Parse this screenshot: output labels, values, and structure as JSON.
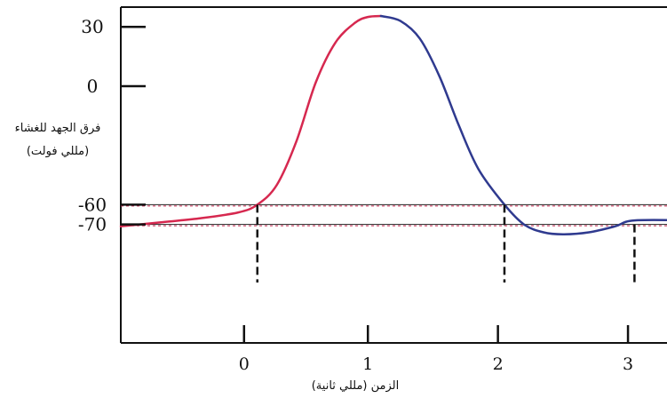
{
  "chart_data": {
    "type": "line",
    "ylabel": "فرق الجهد للغشاء",
    "ylabel_unit": "(مللي فولت)",
    "xlabel": "الزمن (مللي ثانية)",
    "x_ticks": [
      "0",
      "1",
      "2",
      "3"
    ],
    "y_ticks": [
      "30",
      "0",
      "-60",
      "-70"
    ],
    "xlim": [
      -0.9,
      3.3
    ],
    "ylim": [
      -130,
      40
    ],
    "grid": false,
    "reference_lines": [
      {
        "y": -60,
        "style": "dashed",
        "color": "#c62a52"
      },
      {
        "y": -70,
        "style": "dashed",
        "color": "#c62a52"
      }
    ],
    "markers_x": [
      0.15,
      2.05,
      3.05
    ],
    "series": [
      {
        "color": "#d6284f",
        "x": [
          -0.9,
          -0.6,
          -0.3,
          0.0,
          0.15,
          0.3,
          0.45,
          0.6,
          0.75,
          0.9,
          1.0,
          1.1
        ],
        "y": [
          -71,
          -69,
          -67,
          -64,
          -60,
          -50,
          -28,
          2,
          22,
          32,
          35,
          35.5
        ]
      },
      {
        "color": "#2f3a8f",
        "x": [
          1.1,
          1.25,
          1.4,
          1.55,
          1.7,
          1.85,
          2.05,
          2.2,
          2.35,
          2.5,
          2.7,
          2.9,
          3.05,
          3.5
        ],
        "y": [
          35.5,
          33,
          24,
          5,
          -20,
          -42,
          -60,
          -70,
          -74,
          -75,
          -74,
          -71,
          -68,
          -68
        ]
      }
    ]
  }
}
